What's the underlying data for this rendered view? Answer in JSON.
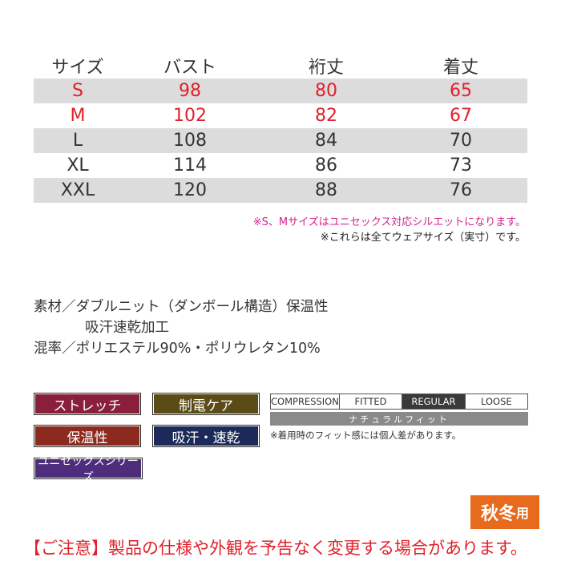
{
  "size_table": {
    "headers": [
      "サイズ",
      "バスト",
      "裄丈",
      "着丈"
    ],
    "rows": [
      [
        "S",
        "98",
        "80",
        "65"
      ],
      [
        "M",
        "102",
        "82",
        "67"
      ],
      [
        "L",
        "108",
        "84",
        "70"
      ],
      [
        "XL",
        "114",
        "86",
        "73"
      ],
      [
        "XXL",
        "120",
        "88",
        "76"
      ]
    ],
    "highlight_color": "#e0202a"
  },
  "notes": {
    "unisex": "※S、Mサイズはユニセックス対応シルエットになります。",
    "actual": "※これらは全てウェアサイズ（実寸）です。"
  },
  "material": {
    "line1": "素材／ダブルニット（ダンボール構造）保温性",
    "line2": "吸汗速乾加工",
    "line3": "混率／ポリエステル90%・ポリウレタン10%"
  },
  "tags": {
    "stretch": {
      "label": "ストレッチ",
      "color": "#8a1f3c"
    },
    "antistatic": {
      "label": "制電ケア",
      "color": "#5b4b16"
    },
    "warm": {
      "label": "保温性",
      "color": "#8c2a1f"
    },
    "sweat": {
      "label": "吸汗・速乾",
      "color": "#1c2a5a"
    },
    "unisex": {
      "label": "ユニセックスシリーズ",
      "color": "#4e2d7d"
    }
  },
  "fit": {
    "options": [
      "COMPRESSION",
      "FITTED",
      "REGULAR",
      "LOOSE"
    ],
    "selected": "REGULAR",
    "bar_label": "ナチュラルフィット",
    "note": "※着用時のフィット感には個人差があります。"
  },
  "season": {
    "main": "秋冬",
    "suffix": "用",
    "color": "#e86a1d"
  },
  "disclaimer": "【ご注意】製品の仕様や外観を予告なく変更する場合があります。"
}
